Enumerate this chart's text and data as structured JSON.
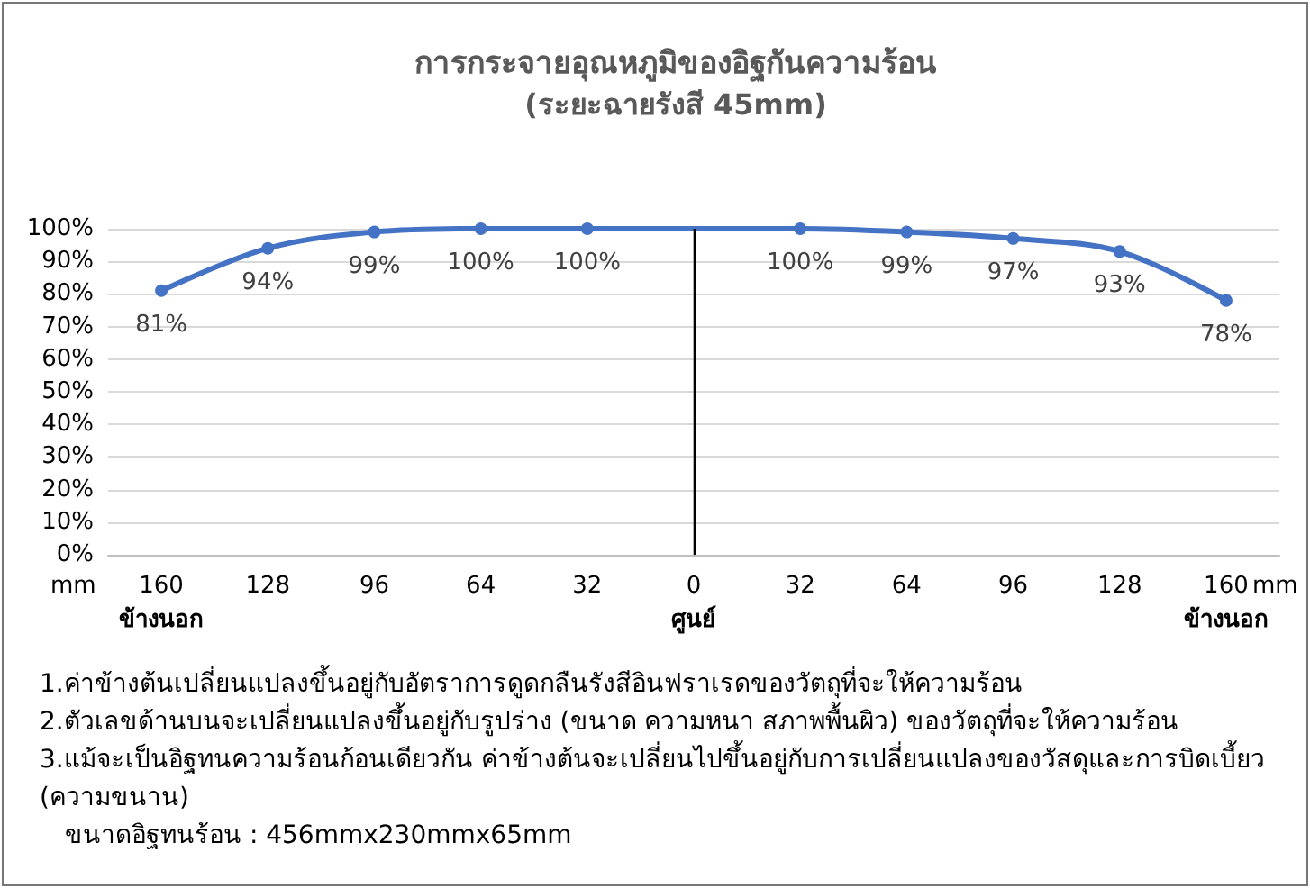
{
  "chart_data": {
    "type": "line",
    "title": "การกระจายอุณหภูมิของอิฐกันความร้อน",
    "subtitle": "(ระยะฉายรังสี 45mm)",
    "xlabel": "mm",
    "categories": [
      "160",
      "128",
      "96",
      "64",
      "32",
      "0",
      "32",
      "64",
      "96",
      "128",
      "160"
    ],
    "series": [
      {
        "color": "#4472c4",
        "values": [
          81,
          94,
          99,
          100,
          100,
          null,
          100,
          99,
          97,
          93,
          78
        ],
        "value_labels": [
          "81%",
          "94%",
          "99%",
          "100%",
          "100%",
          null,
          "100%",
          "99%",
          "97%",
          "93%",
          "78%"
        ]
      }
    ],
    "ylim": [
      0,
      100
    ],
    "yticks": [
      {
        "value": 0,
        "label": "0%"
      },
      {
        "value": 10,
        "label": "10%"
      },
      {
        "value": 20,
        "label": "20%"
      },
      {
        "value": 30,
        "label": "30%"
      },
      {
        "value": 40,
        "label": "40%"
      },
      {
        "value": 50,
        "label": "50%"
      },
      {
        "value": 60,
        "label": "60%"
      },
      {
        "value": 70,
        "label": "70%"
      },
      {
        "value": 80,
        "label": "80%"
      },
      {
        "value": 90,
        "label": "90%"
      },
      {
        "value": 100,
        "label": "100%"
      }
    ],
    "grid": "y",
    "marker": "circle",
    "line_style": "solid",
    "ref_lines": [
      {
        "axis": "x",
        "value": "0",
        "color": "#000000"
      }
    ],
    "annotations": [
      "mm",
      "ข้างนอก",
      "ศูนย์",
      "ข้างนอก",
      "1.ค่าข้างต้นเปลี่ยนแปลงขึ้นอยู่กับอัตราการดูดกลืนรังสีอินฟราเรดของวัตถุที่จะให้ความร้อน",
      "2.ตัวเลขด้านบนจะเปลี่ยนแปลงขึ้นอยู่กับรูปร่าง (ขนาด ความหนา สภาพพื้นผิว) ของวัตถุที่จะให้ความร้อน",
      "3.แม้จะเป็นอิฐทนความร้อนก้อนเดียวกัน ค่าข้างต้นจะเปลี่ยนไปขึ้นอยู่กับการเปลี่ยนแปลงของวัสดุและการบิดเบี้ยว (ความขนาน)",
      "ขนาดอิฐทนร้อน : 456mmx230mmx65mm"
    ]
  }
}
